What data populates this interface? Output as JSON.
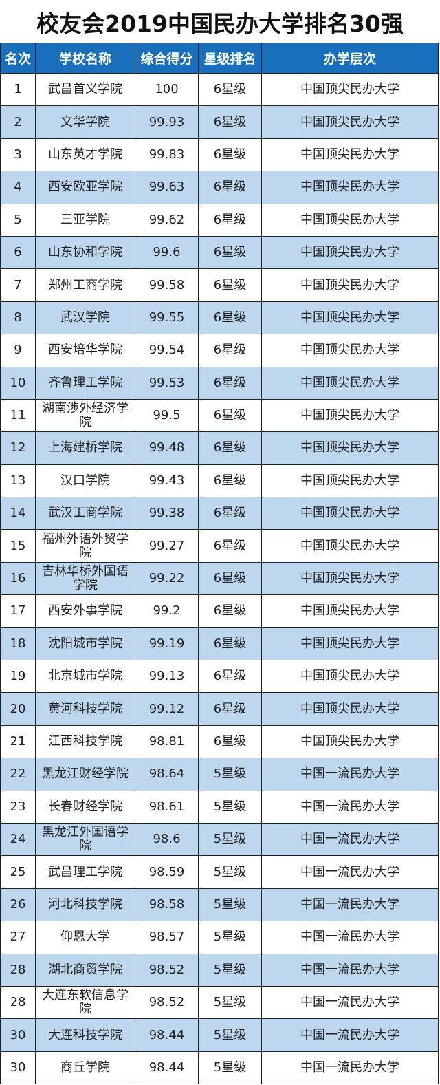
{
  "title": "校友会2019中国民办大学排名30强",
  "colors": {
    "header_bg": "#1a6fbd",
    "alt_row_bg": "#bdd7ee"
  },
  "headers": [
    "名次",
    "学校名称",
    "综合得分",
    "星级排名",
    "办学层次"
  ],
  "rows": [
    [
      "1",
      "武昌首义学院",
      "100",
      "6星级",
      "中国顶尖民办大学"
    ],
    [
      "2",
      "文华学院",
      "99.93",
      "6星级",
      "中国顶尖民办大学"
    ],
    [
      "3",
      "山东英才学院",
      "99.83",
      "6星级",
      "中国顶尖民办大学"
    ],
    [
      "4",
      "西安欧亚学院",
      "99.63",
      "6星级",
      "中国顶尖民办大学"
    ],
    [
      "5",
      "三亚学院",
      "99.62",
      "6星级",
      "中国顶尖民办大学"
    ],
    [
      "6",
      "山东协和学院",
      "99.6",
      "6星级",
      "中国顶尖民办大学"
    ],
    [
      "7",
      "郑州工商学院",
      "99.58",
      "6星级",
      "中国顶尖民办大学"
    ],
    [
      "8",
      "武汉学院",
      "99.55",
      "6星级",
      "中国顶尖民办大学"
    ],
    [
      "9",
      "西安培华学院",
      "99.54",
      "6星级",
      "中国顶尖民办大学"
    ],
    [
      "10",
      "齐鲁理工学院",
      "99.53",
      "6星级",
      "中国顶尖民办大学"
    ],
    [
      "11",
      "湖南涉外经济学院",
      "99.5",
      "6星级",
      "中国顶尖民办大学"
    ],
    [
      "12",
      "上海建桥学院",
      "99.48",
      "6星级",
      "中国顶尖民办大学"
    ],
    [
      "13",
      "汉口学院",
      "99.43",
      "6星级",
      "中国顶尖民办大学"
    ],
    [
      "14",
      "武汉工商学院",
      "99.38",
      "6星级",
      "中国顶尖民办大学"
    ],
    [
      "15",
      "福州外语外贸学院",
      "99.27",
      "6星级",
      "中国顶尖民办大学"
    ],
    [
      "16",
      "吉林华桥外国语学院",
      "99.22",
      "6星级",
      "中国顶尖民办大学"
    ],
    [
      "17",
      "西安外事学院",
      "99.2",
      "6星级",
      "中国顶尖民办大学"
    ],
    [
      "18",
      "沈阳城市学院",
      "99.19",
      "6星级",
      "中国顶尖民办大学"
    ],
    [
      "19",
      "北京城市学院",
      "99.13",
      "6星级",
      "中国顶尖民办大学"
    ],
    [
      "20",
      "黄河科技学院",
      "99.12",
      "6星级",
      "中国顶尖民办大学"
    ],
    [
      "21",
      "江西科技学院",
      "98.81",
      "6星级",
      "中国顶尖民办大学"
    ],
    [
      "22",
      "黑龙江财经学院",
      "98.64",
      "5星级",
      "中国一流民办大学"
    ],
    [
      "23",
      "长春财经学院",
      "98.61",
      "5星级",
      "中国一流民办大学"
    ],
    [
      "24",
      "黑龙江外国语学院",
      "98.6",
      "5星级",
      "中国一流民办大学"
    ],
    [
      "25",
      "武昌理工学院",
      "98.59",
      "5星级",
      "中国一流民办大学"
    ],
    [
      "26",
      "河北科技学院",
      "98.58",
      "5星级",
      "中国一流民办大学"
    ],
    [
      "27",
      "仰恩大学",
      "98.57",
      "5星级",
      "中国一流民办大学"
    ],
    [
      "28",
      "湖北商贸学院",
      "98.52",
      "5星级",
      "中国一流民办大学"
    ],
    [
      "28",
      "大连东软信息学院",
      "98.52",
      "5星级",
      "中国一流民办大学"
    ],
    [
      "30",
      "大连科技学院",
      "98.44",
      "5星级",
      "中国一流民办大学"
    ],
    [
      "30",
      "商丘学院",
      "98.44",
      "5星级",
      "中国一流民办大学"
    ]
  ]
}
